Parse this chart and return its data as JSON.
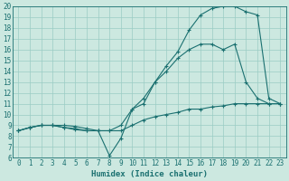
{
  "xlabel": "Humidex (Indice chaleur)",
  "xlim": [
    -0.5,
    23.5
  ],
  "ylim": [
    6,
    20
  ],
  "xticks": [
    0,
    1,
    2,
    3,
    4,
    5,
    6,
    7,
    8,
    9,
    10,
    11,
    12,
    13,
    14,
    15,
    16,
    17,
    18,
    19,
    20,
    21,
    22,
    23
  ],
  "yticks": [
    6,
    7,
    8,
    9,
    10,
    11,
    12,
    13,
    14,
    15,
    16,
    17,
    18,
    19,
    20
  ],
  "bg_color": "#cce8e0",
  "grid_color": "#9accc4",
  "line_color": "#1a7070",
  "series": [
    {
      "x": [
        0,
        1,
        2,
        3,
        4,
        5,
        6,
        7,
        8,
        9,
        10,
        11,
        12,
        13,
        14,
        15,
        16,
        17,
        18,
        19,
        20,
        21,
        22,
        23
      ],
      "y": [
        8.5,
        8.8,
        9.0,
        9.0,
        8.8,
        8.7,
        8.5,
        8.5,
        8.5,
        8.5,
        9.0,
        9.5,
        9.8,
        10.0,
        10.2,
        10.5,
        10.5,
        10.7,
        10.8,
        11.0,
        11.0,
        11.0,
        11.0,
        11.0
      ]
    },
    {
      "x": [
        0,
        1,
        2,
        3,
        4,
        5,
        6,
        7,
        8,
        9,
        10,
        11,
        12,
        13,
        14,
        15,
        16,
        17,
        18,
        19,
        20,
        21,
        22,
        23
      ],
      "y": [
        8.5,
        8.8,
        9.0,
        9.0,
        8.8,
        8.6,
        8.5,
        8.5,
        6.2,
        7.8,
        10.5,
        11.0,
        13.0,
        14.0,
        15.2,
        16.0,
        16.5,
        16.5,
        16.0,
        16.5,
        13.0,
        11.5,
        11.0,
        11.0
      ]
    },
    {
      "x": [
        0,
        1,
        2,
        3,
        4,
        5,
        6,
        7,
        8,
        9,
        10,
        11,
        12,
        13,
        14,
        15,
        16,
        17,
        18,
        19,
        20,
        21,
        22,
        23
      ],
      "y": [
        8.5,
        8.8,
        9.0,
        9.0,
        9.0,
        8.9,
        8.7,
        8.5,
        8.5,
        9.0,
        10.5,
        11.5,
        13.0,
        14.5,
        15.8,
        17.8,
        19.2,
        19.8,
        20.0,
        20.0,
        19.5,
        19.2,
        11.5,
        11.0
      ]
    }
  ]
}
